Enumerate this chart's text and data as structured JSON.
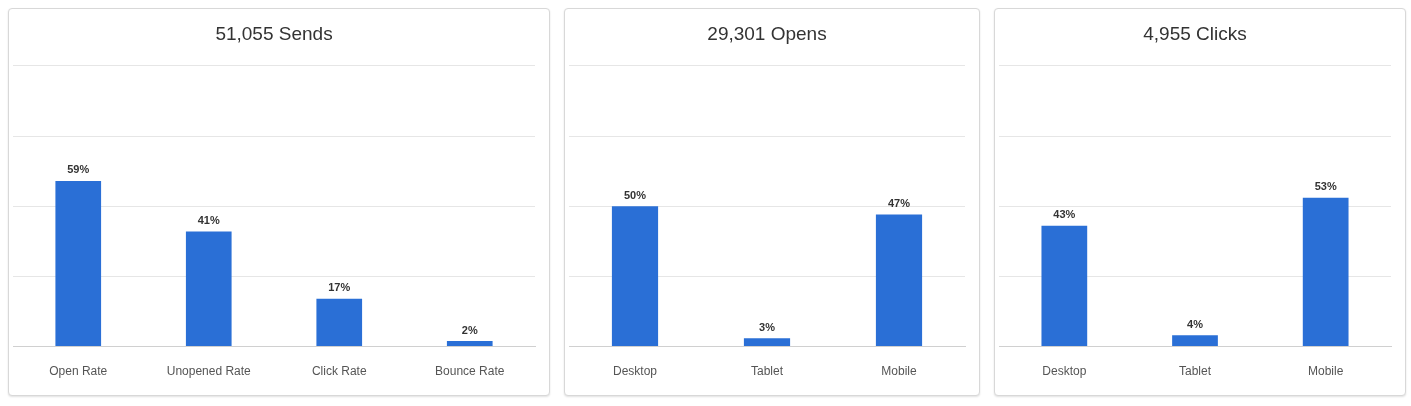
{
  "chart_data": [
    {
      "type": "bar",
      "title": "51,055 Sends",
      "categories": [
        "Open Rate",
        "Unopened Rate",
        "Click Rate",
        "Bounce Rate"
      ],
      "values": [
        59,
        41,
        17,
        2
      ],
      "value_labels": [
        "59%",
        "41%",
        "17%",
        "2%"
      ],
      "color": "#2a6fd6",
      "ylim": [
        0,
        100
      ],
      "yticks": [
        {
          "value": 0,
          "label": null
        },
        {
          "value": 25,
          "label": null
        },
        {
          "value": 50,
          "label": null
        },
        {
          "value": 75,
          "label": null
        },
        {
          "value": 100,
          "label": null
        }
      ],
      "grid": "y",
      "tick_labels": "x",
      "legend": false
    },
    {
      "type": "bar",
      "title": "29,301 Opens",
      "categories": [
        "Desktop",
        "Tablet",
        "Mobile"
      ],
      "values": [
        50,
        3,
        47
      ],
      "value_labels": [
        "50%",
        "3%",
        "47%"
      ],
      "color": "#2a6fd6",
      "ylim": [
        0,
        100
      ],
      "yticks": [
        {
          "value": 0,
          "label": null
        },
        {
          "value": 25,
          "label": null
        },
        {
          "value": 50,
          "label": null
        },
        {
          "value": 75,
          "label": null
        },
        {
          "value": 100,
          "label": null
        }
      ],
      "grid": "y",
      "tick_labels": "x",
      "legend": false
    },
    {
      "type": "bar",
      "title": "4,955 Clicks",
      "categories": [
        "Desktop",
        "Tablet",
        "Mobile"
      ],
      "values": [
        43,
        4,
        53
      ],
      "value_labels": [
        "43%",
        "4%",
        "53%"
      ],
      "color": "#2a6fd6",
      "ylim": [
        0,
        100
      ],
      "yticks": [
        {
          "value": 0,
          "label": null
        },
        {
          "value": 25,
          "label": null
        },
        {
          "value": 50,
          "label": null
        },
        {
          "value": 75,
          "label": null
        },
        {
          "value": 100,
          "label": null
        }
      ],
      "grid": "y",
      "tick_labels": "x",
      "legend": false
    }
  ]
}
